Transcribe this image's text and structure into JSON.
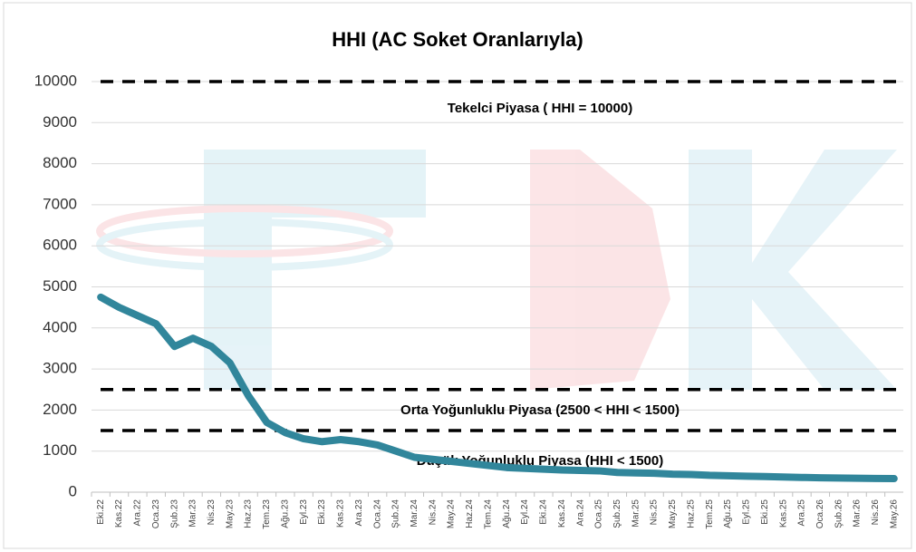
{
  "chart_data": {
    "type": "line",
    "title": "HHI (AC Soket Oranlarıyla)",
    "categories": [
      "Eki.22",
      "Kas.22",
      "Ara.22",
      "Oca.23",
      "Şub.23",
      "Mar.23",
      "Nis.23",
      "May.23",
      "Haz.23",
      "Tem.23",
      "Ağu.23",
      "Eyl.23",
      "Eki.23",
      "Kas.23",
      "Ara.23",
      "Oca.24",
      "Şub.24",
      "Mar.24",
      "Nis.24",
      "May.24",
      "Haz.24",
      "Tem.24",
      "Ağu.24",
      "Eyl.24",
      "Eki.24",
      "Kas.24",
      "Ara.24",
      "Oca.25",
      "Şub.25",
      "Mar.25",
      "Nis.25",
      "May.25",
      "Haz.25",
      "Tem.25",
      "Ağu.25",
      "Eyl.25",
      "Eki.25",
      "Kas.25",
      "Ara.25",
      "Oca.26",
      "Şub.26",
      "Mar.26",
      "Nis.26",
      "May.26"
    ],
    "values": [
      4750,
      4500,
      4300,
      4100,
      3550,
      3750,
      3550,
      3150,
      2350,
      1700,
      1450,
      1300,
      1230,
      1280,
      1230,
      1150,
      1000,
      850,
      800,
      750,
      700,
      650,
      600,
      580,
      560,
      540,
      530,
      520,
      480,
      470,
      460,
      440,
      430,
      410,
      400,
      390,
      380,
      370,
      360,
      350,
      345,
      340,
      335,
      330
    ],
    "color": "#31869b",
    "reference_lines": [
      10000,
      2500,
      1500
    ],
    "annotations": [
      "Tekelci Piyasa ( HHI = 10000)",
      "Orta Yoğunluklu Piyasa (2500 < HHI < 1500)",
      "Düşük Yoğunluklu Piyasa (HHI < 1500)"
    ],
    "ylim": [
      0,
      10000
    ],
    "yticks": [
      0,
      1000,
      2000,
      3000,
      4000,
      5000,
      6000,
      7000,
      8000,
      9000,
      10000
    ],
    "grid": true
  }
}
